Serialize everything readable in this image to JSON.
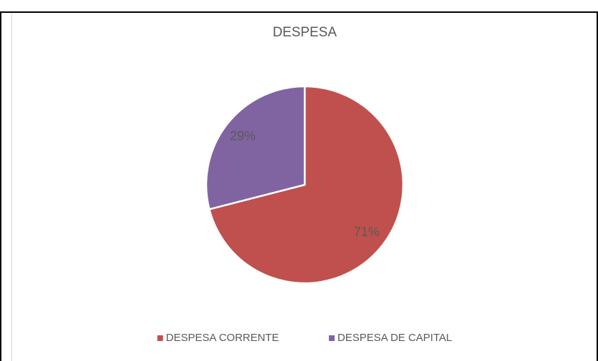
{
  "chart_data": {
    "type": "pie",
    "title": "DESPESA",
    "categories": [
      "DESPESA CORRENTE",
      "DESPESA DE CAPITAL"
    ],
    "values": [
      71,
      29
    ],
    "value_labels": [
      "71%",
      "29%"
    ],
    "colors": [
      "#c0504d",
      "#8064a2"
    ],
    "legend": "bottom"
  }
}
